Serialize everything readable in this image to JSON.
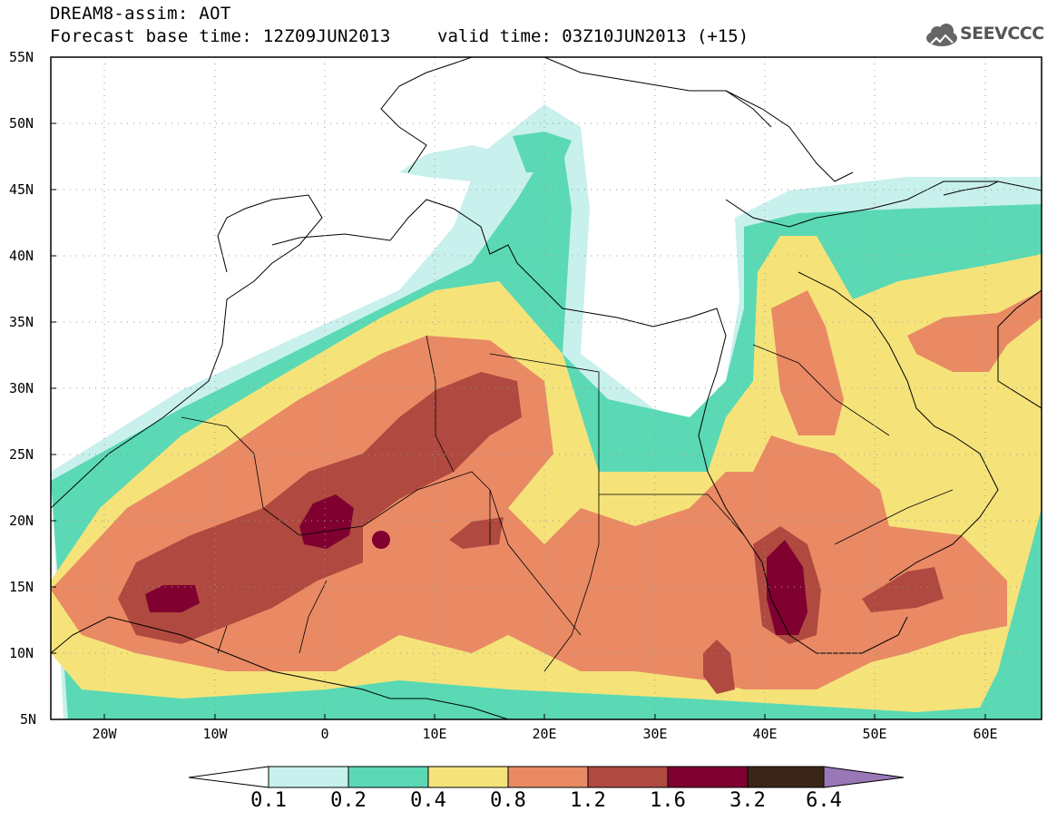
{
  "header": {
    "line1": "DREAM8-assim: AOT",
    "line2": "Forecast base time: 12Z09JUN2013",
    "valid": "valid time: 03Z10JUN2013 (+15)",
    "logo_text": "SEEVCCC"
  },
  "lat_labels": [
    "55N",
    "50N",
    "45N",
    "40N",
    "35N",
    "30N",
    "25N",
    "20N",
    "15N",
    "10N",
    "5N"
  ],
  "lon_labels": [
    "20W",
    "10W",
    "0",
    "10E",
    "20E",
    "30E",
    "40E",
    "50E",
    "60E"
  ],
  "colorbar": {
    "labels": [
      "0.1",
      "0.2",
      "0.4",
      "0.8",
      "1.2",
      "1.6",
      "3.2",
      "6.4"
    ],
    "colors": [
      "#ffffff",
      "#c8f0ec",
      "#5ad9b4",
      "#f5e37a",
      "#e98a64",
      "#b0493f",
      "#800030",
      "#3a2618",
      "#9a78b8"
    ]
  },
  "levels": {
    "c01": "#c8f0ec",
    "c02": "#5ad9b4",
    "c04": "#f5e37a",
    "c08": "#e98a64",
    "c12": "#b0493f",
    "c16": "#800030"
  }
}
